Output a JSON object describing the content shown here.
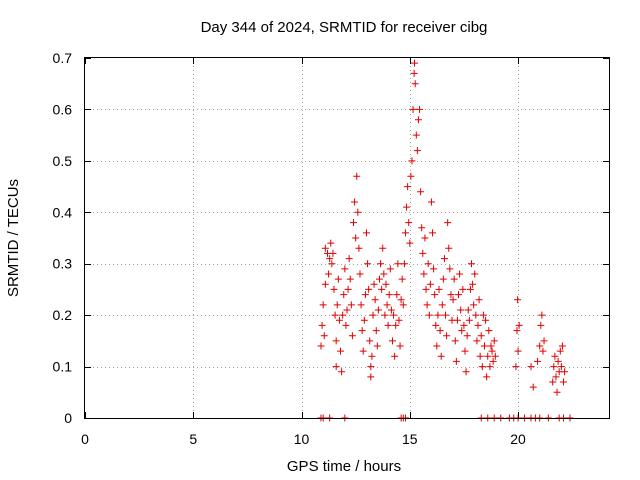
{
  "chart_data": {
    "type": "scatter",
    "title": "Day 344 of 2024, SRMTID for receiver cibg",
    "xlabel": "GPS time / hours",
    "ylabel": "SRMTID / TECUs",
    "xlim": [
      0,
      24.2
    ],
    "ylim": [
      0,
      0.7
    ],
    "x_ticks": [
      0,
      5,
      10,
      15,
      20
    ],
    "x_tick_labels": [
      "0",
      "5",
      "10",
      "15",
      "20"
    ],
    "y_ticks": [
      0,
      0.1,
      0.2,
      0.3,
      0.4,
      0.5,
      0.6,
      0.7
    ],
    "y_tick_labels": [
      "0",
      "0.1",
      "0.2",
      "0.3",
      "0.4",
      "0.5",
      "0.6",
      "0.7"
    ],
    "grid": true,
    "marker": "+",
    "color": "#e00000",
    "series": [
      {
        "name": "SRMTID",
        "points": [
          [
            10.9,
            0.14
          ],
          [
            10.95,
            0.18
          ],
          [
            11.0,
            0.22
          ],
          [
            11.05,
            0.16
          ],
          [
            11.1,
            0.26
          ],
          [
            11.1,
            0.33
          ],
          [
            11.2,
            0.32
          ],
          [
            11.25,
            0.28
          ],
          [
            11.3,
            0.31
          ],
          [
            11.35,
            0.34
          ],
          [
            11.4,
            0.3
          ],
          [
            11.45,
            0.32
          ],
          [
            11.5,
            0.25
          ],
          [
            11.55,
            0.2
          ],
          [
            11.6,
            0.15
          ],
          [
            11.6,
            0.1
          ],
          [
            11.65,
            0.22
          ],
          [
            11.7,
            0.27
          ],
          [
            11.75,
            0.19
          ],
          [
            11.8,
            0.13
          ],
          [
            11.85,
            0.09
          ],
          [
            11.9,
            0.2
          ],
          [
            11.95,
            0.24
          ],
          [
            12.0,
            0.29
          ],
          [
            12.05,
            0.18
          ],
          [
            12.1,
            0.21
          ],
          [
            12.15,
            0.25
          ],
          [
            12.2,
            0.31
          ],
          [
            12.25,
            0.27
          ],
          [
            12.3,
            0.22
          ],
          [
            12.35,
            0.16
          ],
          [
            12.4,
            0.38
          ],
          [
            12.45,
            0.42
          ],
          [
            12.5,
            0.35
          ],
          [
            12.55,
            0.47
          ],
          [
            12.6,
            0.4
          ],
          [
            12.65,
            0.33
          ],
          [
            12.7,
            0.28
          ],
          [
            12.75,
            0.22
          ],
          [
            12.8,
            0.17
          ],
          [
            12.85,
            0.13
          ],
          [
            12.9,
            0.19
          ],
          [
            12.95,
            0.24
          ],
          [
            13.0,
            0.36
          ],
          [
            13.05,
            0.3
          ],
          [
            13.1,
            0.25
          ],
          [
            13.15,
            0.15
          ],
          [
            13.2,
            0.1
          ],
          [
            13.2,
            0.08
          ],
          [
            13.25,
            0.12
          ],
          [
            13.3,
            0.2
          ],
          [
            13.35,
            0.26
          ],
          [
            13.4,
            0.23
          ],
          [
            13.45,
            0.17
          ],
          [
            13.5,
            0.14
          ],
          [
            13.55,
            0.21
          ],
          [
            13.6,
            0.27
          ],
          [
            13.65,
            0.3
          ],
          [
            13.7,
            0.25
          ],
          [
            13.75,
            0.33
          ],
          [
            13.8,
            0.28
          ],
          [
            13.85,
            0.2
          ],
          [
            13.9,
            0.26
          ],
          [
            13.95,
            0.22
          ],
          [
            14.0,
            0.18
          ],
          [
            14.05,
            0.24
          ],
          [
            14.1,
            0.29
          ],
          [
            14.15,
            0.21
          ],
          [
            14.2,
            0.15
          ],
          [
            14.25,
            0.2
          ],
          [
            14.3,
            0.12
          ],
          [
            14.35,
            0.18
          ],
          [
            14.4,
            0.24
          ],
          [
            14.45,
            0.3
          ],
          [
            14.5,
            0.19
          ],
          [
            14.55,
            0.14
          ],
          [
            14.6,
            0.23
          ],
          [
            14.65,
            0.27
          ],
          [
            14.7,
            0.22
          ],
          [
            14.75,
            0.3
          ],
          [
            14.8,
            0.36
          ],
          [
            14.85,
            0.41
          ],
          [
            14.9,
            0.45
          ],
          [
            14.95,
            0.38
          ],
          [
            15.0,
            0.34
          ],
          [
            15.05,
            0.47
          ],
          [
            15.1,
            0.5
          ],
          [
            15.15,
            0.6
          ],
          [
            15.2,
            0.67
          ],
          [
            15.22,
            0.69
          ],
          [
            15.25,
            0.65
          ],
          [
            15.3,
            0.55
          ],
          [
            15.35,
            0.52
          ],
          [
            15.4,
            0.58
          ],
          [
            15.45,
            0.6
          ],
          [
            15.5,
            0.44
          ],
          [
            15.55,
            0.37
          ],
          [
            15.6,
            0.32
          ],
          [
            15.65,
            0.28
          ],
          [
            15.7,
            0.35
          ],
          [
            15.75,
            0.25
          ],
          [
            15.8,
            0.22
          ],
          [
            15.85,
            0.3
          ],
          [
            15.9,
            0.2
          ],
          [
            15.95,
            0.26
          ],
          [
            16.0,
            0.42
          ],
          [
            16.05,
            0.36
          ],
          [
            16.1,
            0.29
          ],
          [
            16.15,
            0.24
          ],
          [
            16.2,
            0.18
          ],
          [
            16.25,
            0.14
          ],
          [
            16.3,
            0.2
          ],
          [
            16.35,
            0.25
          ],
          [
            16.4,
            0.17
          ],
          [
            16.45,
            0.12
          ],
          [
            16.5,
            0.22
          ],
          [
            16.55,
            0.27
          ],
          [
            16.6,
            0.31
          ],
          [
            16.65,
            0.2
          ],
          [
            16.7,
            0.16
          ],
          [
            16.75,
            0.38
          ],
          [
            16.8,
            0.33
          ],
          [
            16.85,
            0.29
          ],
          [
            16.9,
            0.24
          ],
          [
            16.95,
            0.19
          ],
          [
            17.0,
            0.23
          ],
          [
            17.05,
            0.27
          ],
          [
            17.1,
            0.15
          ],
          [
            17.15,
            0.11
          ],
          [
            17.2,
            0.19
          ],
          [
            17.25,
            0.24
          ],
          [
            17.3,
            0.28
          ],
          [
            17.35,
            0.21
          ],
          [
            17.4,
            0.17
          ],
          [
            17.45,
            0.25
          ],
          [
            17.5,
            0.18
          ],
          [
            17.55,
            0.13
          ],
          [
            17.6,
            0.09
          ],
          [
            17.65,
            0.16
          ],
          [
            17.7,
            0.21
          ],
          [
            17.75,
            0.19
          ],
          [
            17.8,
            0.25
          ],
          [
            17.85,
            0.3
          ],
          [
            17.9,
            0.26
          ],
          [
            17.95,
            0.22
          ],
          [
            18.0,
            0.28
          ],
          [
            18.05,
            0.2
          ],
          [
            18.1,
            0.15
          ],
          [
            18.15,
            0.18
          ],
          [
            18.2,
            0.23
          ],
          [
            18.25,
            0.12
          ],
          [
            18.3,
            0.16
          ],
          [
            18.35,
            0.1
          ],
          [
            18.4,
            0.2
          ],
          [
            18.45,
            0.14
          ],
          [
            18.5,
            0.19
          ],
          [
            18.55,
            0.08
          ],
          [
            18.6,
            0.12
          ],
          [
            18.65,
            0.17
          ],
          [
            18.7,
            0.1
          ],
          [
            18.75,
            0.14
          ],
          [
            18.8,
            0.13
          ],
          [
            18.85,
            0.11
          ],
          [
            18.9,
            0.15
          ],
          [
            18.95,
            0.12
          ],
          [
            19.9,
            0.1
          ],
          [
            19.95,
            0.17
          ],
          [
            19.98,
            0.23
          ],
          [
            20.0,
            0.13
          ],
          [
            20.05,
            0.18
          ],
          [
            20.6,
            0.1
          ],
          [
            20.7,
            0.06
          ],
          [
            20.9,
            0.11
          ],
          [
            21.0,
            0.14
          ],
          [
            21.05,
            0.18
          ],
          [
            21.1,
            0.2
          ],
          [
            21.15,
            0.13
          ],
          [
            21.2,
            0.15
          ],
          [
            21.6,
            0.07
          ],
          [
            21.65,
            0.1
          ],
          [
            21.7,
            0.12
          ],
          [
            21.75,
            0.08
          ],
          [
            21.8,
            0.05
          ],
          [
            21.85,
            0.11
          ],
          [
            21.9,
            0.09
          ],
          [
            21.95,
            0.13
          ],
          [
            22.0,
            0.1
          ],
          [
            22.05,
            0.14
          ],
          [
            22.1,
            0.07
          ],
          [
            22.15,
            0.09
          ],
          [
            10.9,
            0.0
          ],
          [
            11.0,
            0.0
          ],
          [
            11.3,
            0.0
          ],
          [
            12.0,
            0.0
          ],
          [
            14.6,
            0.0
          ],
          [
            14.7,
            0.0
          ],
          [
            14.8,
            0.0
          ],
          [
            18.3,
            0.0
          ],
          [
            18.6,
            0.0
          ],
          [
            18.9,
            0.0
          ],
          [
            19.2,
            0.0
          ],
          [
            19.6,
            0.0
          ],
          [
            19.8,
            0.0
          ],
          [
            20.0,
            0.0
          ],
          [
            20.3,
            0.0
          ],
          [
            20.6,
            0.0
          ],
          [
            20.8,
            0.0
          ],
          [
            21.0,
            0.0
          ],
          [
            21.4,
            0.0
          ],
          [
            21.9,
            0.0
          ],
          [
            22.1,
            0.0
          ],
          [
            22.4,
            0.0
          ]
        ]
      }
    ]
  }
}
